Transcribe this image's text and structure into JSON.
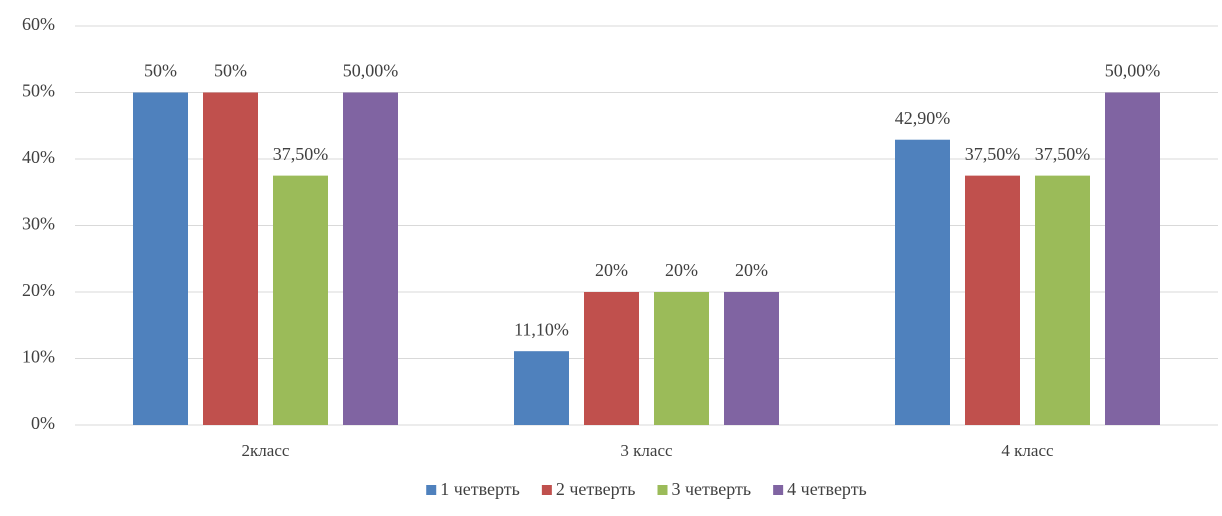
{
  "chart_data": {
    "type": "bar",
    "categories": [
      "2класс",
      "3 класс",
      "4 класс"
    ],
    "series": [
      {
        "name": "1 четверть",
        "color": "#4f81bd",
        "values": [
          50,
          11.1,
          42.9
        ],
        "value_labels": [
          "50%",
          "11,10%",
          "42,90%"
        ]
      },
      {
        "name": "2 четверть",
        "color": "#c0504d",
        "values": [
          50,
          20,
          37.5
        ],
        "value_labels": [
          "50%",
          "20%",
          "37,50%"
        ]
      },
      {
        "name": "3 четверть",
        "color": "#9bbb59",
        "values": [
          37.5,
          20,
          37.5
        ],
        "value_labels": [
          "37,50%",
          "20%",
          "37,50%"
        ]
      },
      {
        "name": "4 четверть",
        "color": "#8064a2",
        "values": [
          50,
          20,
          50
        ],
        "value_labels": [
          "50,00%",
          "20%",
          "50,00%"
        ]
      }
    ],
    "ylim": [
      0,
      60
    ],
    "yticks": [
      {
        "value": 0,
        "label": "0%"
      },
      {
        "value": 10,
        "label": "10%"
      },
      {
        "value": 20,
        "label": "20%"
      },
      {
        "value": 30,
        "label": "30%"
      },
      {
        "value": 40,
        "label": "40%"
      },
      {
        "value": 50,
        "label": "50%"
      },
      {
        "value": 60,
        "label": "60%"
      }
    ],
    "grid": true,
    "legend": "bottom"
  }
}
